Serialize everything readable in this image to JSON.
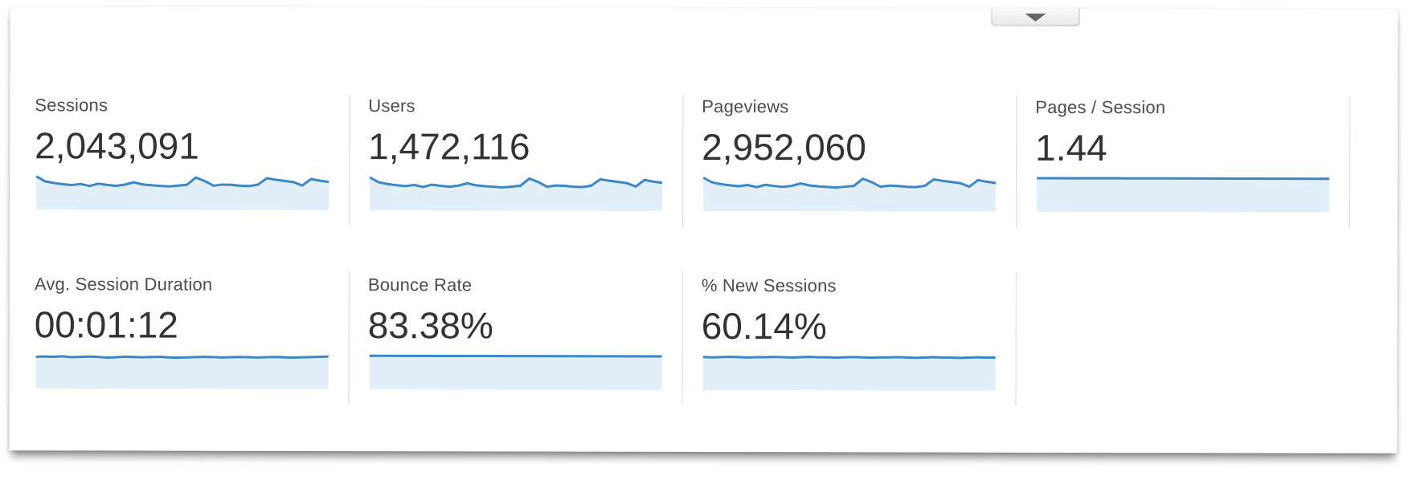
{
  "panel": {
    "collapse_button": {
      "icon": "triangle-down-icon"
    }
  },
  "colors": {
    "sparkline_line": "#3c87c8",
    "sparkline_fill": "#e2eef8",
    "divider": "#d9d9d9",
    "label_text": "#4d4d4d",
    "value_text": "#333333"
  },
  "metrics": [
    {
      "id": "sessions",
      "label": "Sessions",
      "value": "2,043,091"
    },
    {
      "id": "users",
      "label": "Users",
      "value": "1,472,116"
    },
    {
      "id": "pageviews",
      "label": "Pageviews",
      "value": "2,952,060"
    },
    {
      "id": "pages-per-session",
      "label": "Pages / Session",
      "value": "1.44"
    },
    {
      "id": "avg-session-duration",
      "label": "Avg. Session Duration",
      "value": "00:01:12"
    },
    {
      "id": "bounce-rate",
      "label": "Bounce Rate",
      "value": "83.38%"
    },
    {
      "id": "new-sessions",
      "label": "% New Sessions",
      "value": "60.14%"
    }
  ],
  "chart_data": [
    {
      "type": "area",
      "metric": "Sessions",
      "total": "2,043,091",
      "values": [
        0.96,
        0.79,
        0.73,
        0.69,
        0.66,
        0.7,
        0.63,
        0.71,
        0.67,
        0.64,
        0.68,
        0.76,
        0.69,
        0.66,
        0.64,
        0.62,
        0.65,
        0.68,
        0.93,
        0.81,
        0.65,
        0.69,
        0.68,
        0.65,
        0.64,
        0.69,
        0.91,
        0.86,
        0.82,
        0.78,
        0.66,
        0.89,
        0.83,
        0.79
      ]
    },
    {
      "type": "area",
      "metric": "Users",
      "total": "1,472,116",
      "values": [
        0.95,
        0.78,
        0.72,
        0.68,
        0.65,
        0.69,
        0.62,
        0.7,
        0.66,
        0.63,
        0.67,
        0.75,
        0.68,
        0.65,
        0.63,
        0.61,
        0.64,
        0.67,
        0.92,
        0.8,
        0.64,
        0.68,
        0.67,
        0.64,
        0.63,
        0.68,
        0.9,
        0.85,
        0.81,
        0.77,
        0.65,
        0.88,
        0.82,
        0.78
      ]
    },
    {
      "type": "area",
      "metric": "Pageviews",
      "total": "2,952,060",
      "values": [
        0.96,
        0.8,
        0.74,
        0.7,
        0.67,
        0.71,
        0.64,
        0.72,
        0.68,
        0.65,
        0.69,
        0.77,
        0.7,
        0.67,
        0.65,
        0.63,
        0.66,
        0.69,
        0.94,
        0.82,
        0.66,
        0.7,
        0.69,
        0.66,
        0.65,
        0.7,
        0.92,
        0.87,
        0.83,
        0.79,
        0.67,
        0.9,
        0.84,
        0.8
      ]
    },
    {
      "type": "area",
      "metric": "Pages / Session",
      "total": "1.44",
      "values": [
        0.97,
        0.97,
        0.97,
        0.97,
        0.97,
        0.97,
        0.97,
        0.97
      ]
    },
    {
      "type": "area",
      "metric": "Avg. Session Duration",
      "total": "00:01:12",
      "values": [
        0.91,
        0.92,
        0.91,
        0.93,
        0.9,
        0.91,
        0.92,
        0.91,
        0.89,
        0.9,
        0.92,
        0.91,
        0.9,
        0.91,
        0.92,
        0.9,
        0.89,
        0.9,
        0.91,
        0.92,
        0.91,
        0.9,
        0.91,
        0.92,
        0.91,
        0.9,
        0.91,
        0.92,
        0.91,
        0.9,
        0.91,
        0.92,
        0.93,
        0.94
      ]
    },
    {
      "type": "area",
      "metric": "Bounce Rate",
      "total": "83.38%",
      "values": [
        0.97,
        0.97,
        0.97,
        0.97,
        0.97,
        0.97,
        0.97,
        0.97
      ]
    },
    {
      "type": "area",
      "metric": "% New Sessions",
      "total": "60.14%",
      "values": [
        0.95,
        0.94,
        0.95,
        0.96,
        0.95,
        0.94,
        0.95,
        0.95,
        0.96,
        0.95,
        0.94,
        0.95,
        0.96,
        0.95,
        0.95,
        0.94,
        0.95,
        0.96,
        0.95,
        0.94,
        0.95,
        0.95,
        0.96,
        0.95,
        0.94,
        0.95,
        0.96,
        0.95,
        0.95,
        0.94,
        0.95,
        0.96,
        0.95,
        0.95
      ]
    }
  ]
}
